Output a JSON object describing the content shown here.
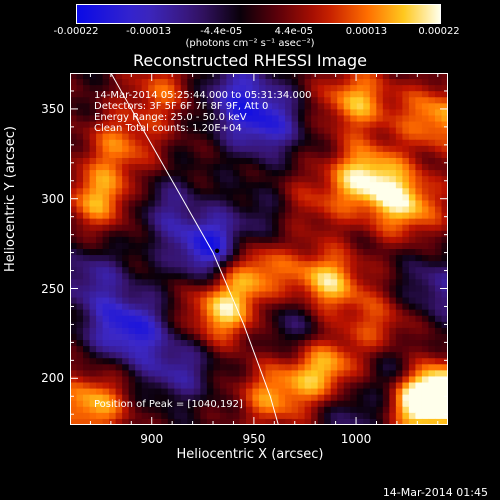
{
  "colorbar": {
    "ticks": [
      "-0.00022",
      "-0.00013",
      "-4.4e-05",
      "4.4e-05",
      "0.00013",
      "0.00022"
    ],
    "units": "(photons cm⁻² s⁻¹ asec⁻²)"
  },
  "annotations": {
    "time_range": "14-Mar-2014 05:25:44.000 to 05:31:34.000",
    "detectors": "Detectors: 3F 5F 6F 7F 8F 9F, Att 0",
    "energy": "Energy Range: 25.0 - 50.0 keV",
    "clean": "Clean    Total counts: 1.20E+04",
    "peak": "Position of Peak = [1040,192]"
  },
  "footer": {
    "timestamp": "14-Mar-2014 01:45"
  },
  "chart_data": {
    "type": "heatmap",
    "title": "Reconstructed RHESSI Image",
    "xlabel": "Heliocentric X (arcsec)",
    "ylabel": "Heliocentric Y (arcsec)",
    "xlim": [
      860,
      1045
    ],
    "ylim": [
      174,
      370
    ],
    "xticks": [
      900,
      950,
      1000
    ],
    "yticks": [
      200,
      250,
      300,
      350
    ],
    "color_range": [
      -0.00022,
      0.00022
    ],
    "colormap": "blue-black-red-yellow-white",
    "peak": [
      1040,
      192
    ],
    "sources": [
      {
        "x": 1040,
        "y": 192,
        "value": 0.00022
      },
      {
        "x": 1030,
        "y": 188,
        "value": 0.00021
      },
      {
        "x": 948,
        "y": 262,
        "value": 0.00018
      },
      {
        "x": 935,
        "y": 237,
        "value": 0.00018
      },
      {
        "x": 985,
        "y": 253,
        "value": 0.00019
      },
      {
        "x": 1005,
        "y": 312,
        "value": 0.0002
      },
      {
        "x": 1025,
        "y": 296,
        "value": 0.00017
      },
      {
        "x": 1000,
        "y": 355,
        "value": 0.00016
      },
      {
        "x": 1040,
        "y": 345,
        "value": 0.00016
      },
      {
        "x": 875,
        "y": 300,
        "value": 0.00016
      },
      {
        "x": 885,
        "y": 330,
        "value": 0.00012
      },
      {
        "x": 905,
        "y": 360,
        "value": 0.00011
      },
      {
        "x": 870,
        "y": 185,
        "value": 0.00017
      },
      {
        "x": 960,
        "y": 190,
        "value": 0.00014
      },
      {
        "x": 985,
        "y": 205,
        "value": 0.00017
      },
      {
        "x": 975,
        "y": 295,
        "value": 0.0001
      },
      {
        "x": 1012,
        "y": 230,
        "value": 0.0001
      },
      {
        "x": 930,
        "y": 272,
        "value": -0.00022
      },
      {
        "x": 955,
        "y": 342,
        "value": -0.00016
      },
      {
        "x": 940,
        "y": 360,
        "value": -0.00012
      },
      {
        "x": 888,
        "y": 228,
        "value": -0.00018
      },
      {
        "x": 912,
        "y": 205,
        "value": -0.00011
      },
      {
        "x": 1022,
        "y": 200,
        "value": -0.00013
      },
      {
        "x": 1040,
        "y": 250,
        "value": -0.0001
      },
      {
        "x": 970,
        "y": 232,
        "value": -9e-05
      },
      {
        "x": 960,
        "y": 290,
        "value": -8e-05
      },
      {
        "x": 905,
        "y": 295,
        "value": -9e-05
      },
      {
        "x": 870,
        "y": 255,
        "value": -0.0001
      },
      {
        "x": 1000,
        "y": 180,
        "value": -8e-05
      }
    ],
    "limb_curve": [
      [
        880,
        370
      ],
      [
        900,
        330
      ],
      [
        915,
        300
      ],
      [
        930,
        270
      ],
      [
        945,
        230
      ],
      [
        958,
        190
      ],
      [
        962,
        174
      ]
    ],
    "marker": [
      932,
      271
    ]
  }
}
